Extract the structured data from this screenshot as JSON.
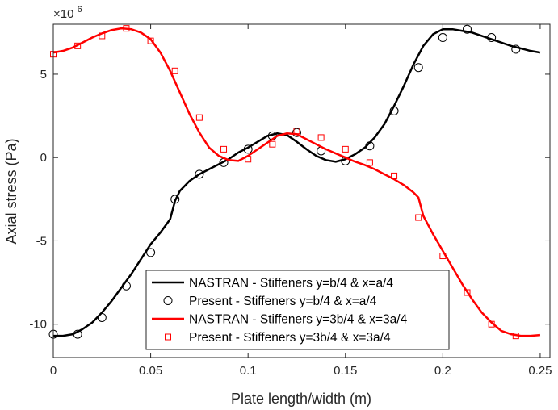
{
  "chart_data": {
    "type": "line",
    "title": "",
    "xlabel": "Plate length/width (m)",
    "ylabel": "Axial stress (Pa)",
    "y_exponent_label": "×10",
    "y_exponent_power": "6",
    "xlim": [
      0,
      0.255
    ],
    "ylim": [
      -12,
      8
    ],
    "x_ticks": [
      0,
      0.05,
      0.1,
      0.15,
      0.2,
      0.25
    ],
    "x_tick_labels": [
      "0",
      "0.05",
      "0.1",
      "0.15",
      "0.2",
      "0.25"
    ],
    "y_ticks": [
      -10,
      -5,
      0,
      5
    ],
    "y_tick_labels": [
      "-10",
      "-5",
      "0",
      "5"
    ],
    "grid": false,
    "legend_position": "bottom-right",
    "series": [
      {
        "name": "NASTRAN - Stiffeners y=b/4 & x=a/4",
        "style": "line",
        "color": "#000000",
        "x": [
          0,
          0.005,
          0.01,
          0.015,
          0.02,
          0.025,
          0.03,
          0.035,
          0.04,
          0.045,
          0.05,
          0.055,
          0.06,
          0.0625,
          0.065,
          0.07,
          0.075,
          0.08,
          0.085,
          0.09,
          0.095,
          0.1,
          0.105,
          0.11,
          0.115,
          0.12,
          0.125,
          0.13,
          0.135,
          0.14,
          0.145,
          0.15,
          0.155,
          0.16,
          0.165,
          0.17,
          0.175,
          0.18,
          0.185,
          0.19,
          0.195,
          0.2,
          0.205,
          0.21,
          0.215,
          0.22,
          0.225,
          0.23,
          0.235,
          0.24,
          0.245,
          0.25
        ],
        "y": [
          -10.7,
          -10.7,
          -10.6,
          -10.3,
          -9.9,
          -9.3,
          -8.6,
          -7.8,
          -7.0,
          -6.1,
          -5.2,
          -4.5,
          -3.7,
          -2.6,
          -2.0,
          -1.4,
          -1.0,
          -0.7,
          -0.4,
          -0.1,
          0.3,
          0.6,
          0.95,
          1.3,
          1.45,
          1.35,
          0.95,
          0.5,
          0.1,
          -0.15,
          -0.25,
          -0.1,
          0.2,
          0.6,
          1.2,
          2.0,
          3.1,
          4.3,
          5.6,
          6.7,
          7.4,
          7.7,
          7.7,
          7.6,
          7.5,
          7.3,
          7.1,
          6.9,
          6.7,
          6.55,
          6.4,
          6.3
        ]
      },
      {
        "name": "Present - Stiffeners y=b/4 & x=a/4",
        "style": "marker-circle",
        "color": "#000000",
        "x": [
          0,
          0.0125,
          0.025,
          0.0375,
          0.05,
          0.0625,
          0.075,
          0.0875,
          0.1,
          0.1125,
          0.125,
          0.1375,
          0.15,
          0.1625,
          0.175,
          0.1875,
          0.2,
          0.2125,
          0.225,
          0.2375
        ],
        "y": [
          -10.6,
          -10.6,
          -9.6,
          -7.7,
          -5.7,
          -2.5,
          -1.0,
          -0.3,
          0.5,
          1.3,
          1.5,
          0.4,
          -0.2,
          0.7,
          2.8,
          5.4,
          7.2,
          7.7,
          7.2,
          6.5
        ]
      },
      {
        "name": "NASTRAN - Stiffeners y=3b/4 & x=3a/4",
        "style": "line",
        "color": "#ff0000",
        "x": [
          0,
          0.005,
          0.01,
          0.015,
          0.02,
          0.025,
          0.03,
          0.035,
          0.04,
          0.045,
          0.05,
          0.055,
          0.06,
          0.065,
          0.07,
          0.075,
          0.08,
          0.085,
          0.09,
          0.095,
          0.1,
          0.105,
          0.11,
          0.115,
          0.12,
          0.125,
          0.13,
          0.135,
          0.14,
          0.145,
          0.15,
          0.155,
          0.16,
          0.165,
          0.17,
          0.175,
          0.18,
          0.185,
          0.1875,
          0.19,
          0.195,
          0.2,
          0.205,
          0.21,
          0.215,
          0.22,
          0.225,
          0.23,
          0.235,
          0.24,
          0.245,
          0.25
        ],
        "y": [
          6.3,
          6.4,
          6.6,
          6.9,
          7.2,
          7.45,
          7.65,
          7.75,
          7.7,
          7.5,
          7.1,
          6.3,
          5.2,
          3.9,
          2.6,
          1.5,
          0.6,
          0.1,
          -0.15,
          -0.2,
          0.1,
          0.5,
          0.9,
          1.3,
          1.45,
          1.4,
          1.1,
          0.8,
          0.5,
          0.25,
          0.0,
          -0.25,
          -0.45,
          -0.7,
          -1.0,
          -1.3,
          -1.65,
          -2.1,
          -2.4,
          -3.5,
          -4.6,
          -5.6,
          -6.6,
          -7.6,
          -8.5,
          -9.3,
          -9.9,
          -10.4,
          -10.6,
          -10.7,
          -10.7,
          -10.65
        ]
      },
      {
        "name": "Present - Stiffeners y=3b/4 & x=3a/4",
        "style": "marker-square",
        "color": "#ff0000",
        "x": [
          0,
          0.0125,
          0.025,
          0.0375,
          0.05,
          0.0625,
          0.075,
          0.0875,
          0.1,
          0.1125,
          0.125,
          0.1375,
          0.15,
          0.1625,
          0.175,
          0.1875,
          0.2,
          0.2125,
          0.225,
          0.2375
        ],
        "y": [
          6.2,
          6.7,
          7.3,
          7.75,
          7.0,
          5.2,
          2.4,
          0.5,
          -0.1,
          0.8,
          1.6,
          1.2,
          0.5,
          -0.3,
          -1.1,
          -3.6,
          -5.9,
          -8.1,
          -10.0,
          -10.7
        ]
      }
    ]
  }
}
